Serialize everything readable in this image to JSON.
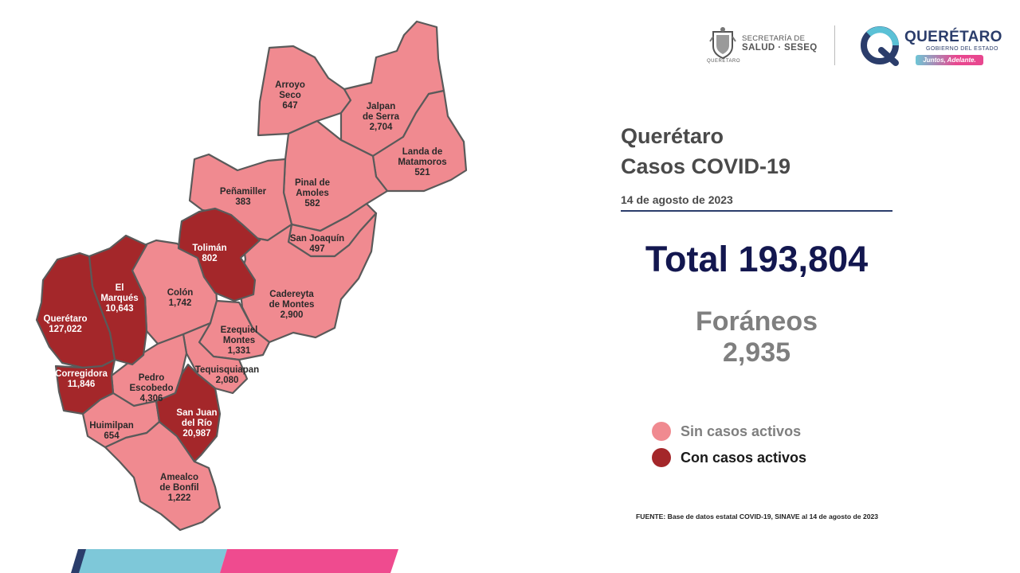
{
  "header": {
    "secretaria_line1": "SECRETARÍA DE",
    "secretaria_line2": "SALUD · SESEQ",
    "secretaria_line3": "QUERÉTARO",
    "state_name": "QUERÉTARO",
    "state_sub": "GOBIERNO DEL ESTADO",
    "slogan": "Juntos, Adelante."
  },
  "title": {
    "line1": "Querétaro",
    "line2": "Casos COVID-19"
  },
  "date": "14 de agosto de 2023",
  "total": "Total 193,804",
  "foraneos": {
    "label": "Foráneos",
    "value": "2,935"
  },
  "legend": {
    "inactive_label": "Sin casos activos",
    "active_label": "Con casos activos",
    "inactive_color": "#f08a90",
    "active_color": "#a4272a"
  },
  "source": "FUENTE: Base de datos estatal COVID-19, SINAVE  al 14 de agosto de 2023",
  "municipalities": {
    "arroyo_seco": {
      "name1": "Arroyo",
      "name2": "Seco",
      "cases": "647",
      "active": false
    },
    "jalpan": {
      "name1": "Jalpan",
      "name2": "de Serra",
      "cases": "2,704",
      "active": false
    },
    "landa": {
      "name1": "Landa de",
      "name2": "Matamoros",
      "cases": "521",
      "active": false
    },
    "pinal": {
      "name1": "Pinal de",
      "name2": "Amoles",
      "cases": "582",
      "active": false
    },
    "penamiller": {
      "name1": "Peñamiller",
      "cases": "383",
      "active": false
    },
    "san_joaquin": {
      "name1": "San Joaquín",
      "cases": "497",
      "active": false
    },
    "toliman": {
      "name1": "Tolimán",
      "cases": "802",
      "active": true
    },
    "cadereyta": {
      "name1": "Cadereyta",
      "name2": "de Montes",
      "cases": "2,900",
      "active": false
    },
    "colon": {
      "name1": "Colón",
      "cases": "1,742",
      "active": false
    },
    "el_marques": {
      "name1": "El",
      "name2": "Marqués",
      "cases": "10,643",
      "active": true
    },
    "queretaro": {
      "name1": "Querétaro",
      "cases": "127,022",
      "active": true
    },
    "ezequiel": {
      "name1": "Ezequiel",
      "name2": "Montes",
      "cases": "1,331",
      "active": false
    },
    "tequisquiapan": {
      "name1": "Tequisquiapan",
      "cases": "2,080",
      "active": false
    },
    "corregidora": {
      "name1": "Corregidora",
      "cases": "11,846",
      "active": true
    },
    "pedro_escobedo": {
      "name1": "Pedro",
      "name2": "Escobedo",
      "cases": "4,306",
      "active": false
    },
    "huimilpan": {
      "name1": "Huimilpan",
      "cases": "654",
      "active": false
    },
    "san_juan": {
      "name1": "San Juan",
      "name2": "del Río",
      "cases": "20,987",
      "active": true
    },
    "amealco": {
      "name1": "Amealco",
      "name2": "de Bonfil",
      "cases": "1,222",
      "active": false
    }
  }
}
